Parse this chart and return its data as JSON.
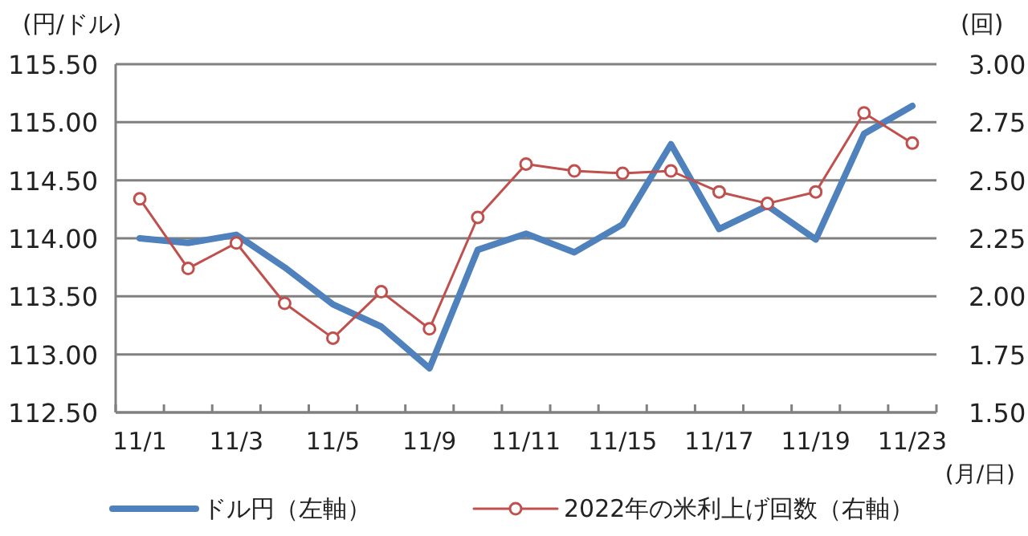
{
  "chart_data": {
    "type": "line",
    "ylabel": "(円/ドル)",
    "y2label": "(回)",
    "xlabel": "(月/日)",
    "categories": [
      "11/1",
      null,
      "11/3",
      null,
      "11/5",
      null,
      "11/9",
      null,
      "11/11",
      null,
      "11/15",
      null,
      "11/17",
      null,
      "11/19",
      null,
      "11/23"
    ],
    "series": [
      {
        "name": "ドル円（左軸）",
        "color": "#4f81bd",
        "marker": "none",
        "values": [
          114.0,
          113.96,
          114.03,
          113.75,
          113.43,
          113.24,
          112.88,
          113.9,
          114.04,
          113.88,
          114.12,
          114.81,
          114.08,
          114.28,
          113.99,
          114.9,
          115.14
        ]
      },
      {
        "name": "2022年の米利上げ回数（右軸）",
        "color": "#c0504d",
        "marker": "circle",
        "axis": "y2",
        "values": [
          2.42,
          2.12,
          2.23,
          1.97,
          1.82,
          2.02,
          1.86,
          2.34,
          2.57,
          2.54,
          2.53,
          2.54,
          2.45,
          2.4,
          2.45,
          2.79,
          2.66
        ]
      }
    ],
    "ylim": [
      112.5,
      115.5
    ],
    "yticks": [
      {
        "value": 112.5,
        "label": "112.50"
      },
      {
        "value": 113,
        "label": "113.00"
      },
      {
        "value": 113.5,
        "label": "113.50"
      },
      {
        "value": 114,
        "label": "114.00"
      },
      {
        "value": 114.5,
        "label": "114.50"
      },
      {
        "value": 115,
        "label": "115.00"
      },
      {
        "value": 115.5,
        "label": "115.50"
      }
    ],
    "y2lim": [
      1.5,
      3.0
    ],
    "y2ticks": [
      {
        "value": 1.5,
        "label": "1.50"
      },
      {
        "value": 1.75,
        "label": "1.75"
      },
      {
        "value": 2,
        "label": "2.00"
      },
      {
        "value": 2.25,
        "label": "2.25"
      },
      {
        "value": 2.5,
        "label": "2.50"
      },
      {
        "value": 2.75,
        "label": "2.75"
      },
      {
        "value": 3,
        "label": "3.00"
      }
    ],
    "grid": "y",
    "legend": "bottom"
  }
}
